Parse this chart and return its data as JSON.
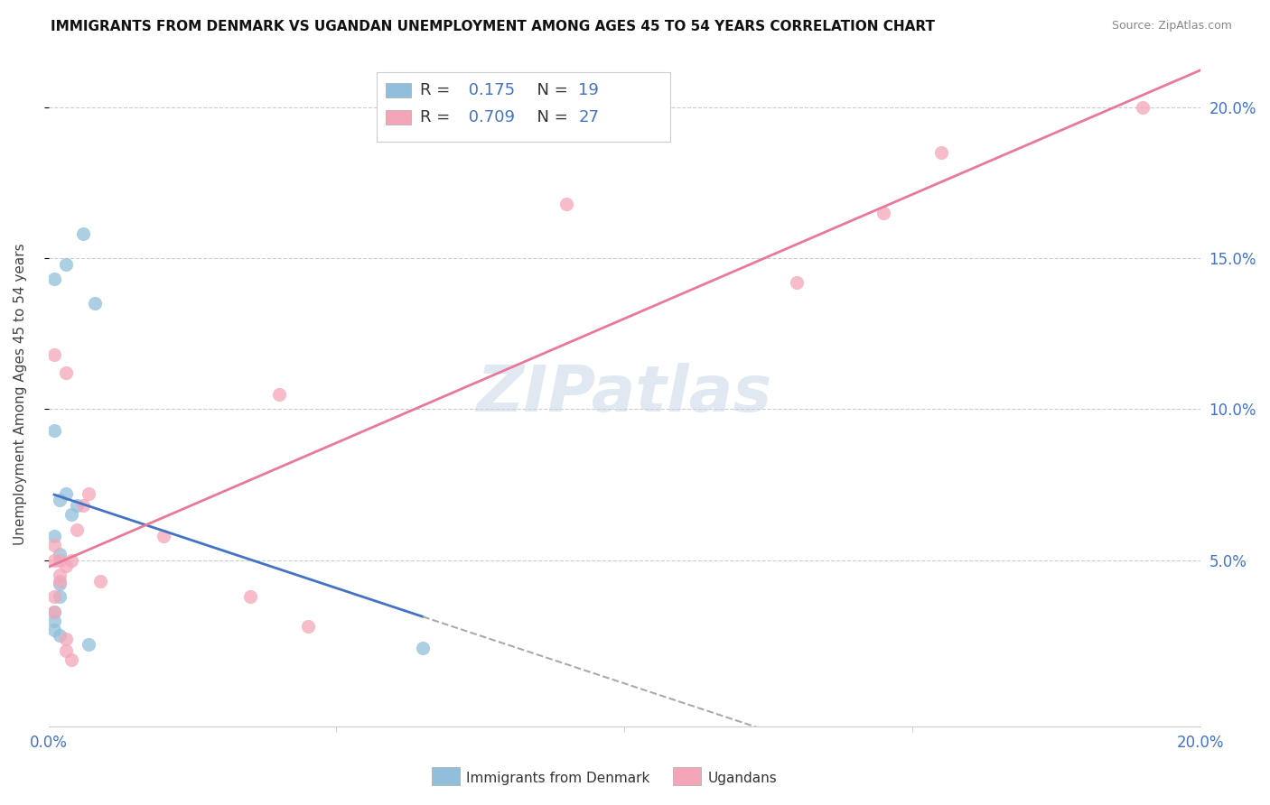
{
  "title": "IMMIGRANTS FROM DENMARK VS UGANDAN UNEMPLOYMENT AMONG AGES 45 TO 54 YEARS CORRELATION CHART",
  "source": "Source: ZipAtlas.com",
  "ylabel": "Unemployment Among Ages 45 to 54 years",
  "xlim": [
    0,
    0.2
  ],
  "ylim": [
    -0.005,
    0.215
  ],
  "yticks": [
    0.05,
    0.1,
    0.15,
    0.2
  ],
  "ytick_labels": [
    "5.0%",
    "10.0%",
    "15.0%",
    "20.0%"
  ],
  "denmark_color": "#91bfdb",
  "ugandan_color": "#f4a6b8",
  "denmark_line_color": "#4472c4",
  "ugandan_line_color": "#e8799a",
  "dashed_line_color": "#aaaaaa",
  "denmark_label": "Immigrants from Denmark",
  "ugandan_label": "Ugandans",
  "denmark_R": 0.175,
  "denmark_N": 19,
  "ugandan_R": 0.709,
  "ugandan_N": 27,
  "watermark": "ZIPatlas",
  "denmark_scatter_x": [
    0.001,
    0.003,
    0.006,
    0.008,
    0.001,
    0.001,
    0.002,
    0.003,
    0.004,
    0.005,
    0.002,
    0.002,
    0.001,
    0.001,
    0.001,
    0.002,
    0.002,
    0.007,
    0.065
  ],
  "denmark_scatter_y": [
    0.143,
    0.148,
    0.158,
    0.135,
    0.093,
    0.058,
    0.07,
    0.072,
    0.065,
    0.068,
    0.052,
    0.038,
    0.033,
    0.03,
    0.027,
    0.025,
    0.042,
    0.022,
    0.021
  ],
  "ugandan_scatter_x": [
    0.001,
    0.003,
    0.001,
    0.001,
    0.001,
    0.001,
    0.002,
    0.002,
    0.002,
    0.003,
    0.004,
    0.005,
    0.006,
    0.007,
    0.009,
    0.02,
    0.035,
    0.045,
    0.003,
    0.003,
    0.004,
    0.04,
    0.09,
    0.13,
    0.145,
    0.155,
    0.19
  ],
  "ugandan_scatter_y": [
    0.118,
    0.112,
    0.055,
    0.05,
    0.038,
    0.033,
    0.05,
    0.043,
    0.045,
    0.048,
    0.05,
    0.06,
    0.068,
    0.072,
    0.043,
    0.058,
    0.038,
    0.028,
    0.024,
    0.02,
    0.017,
    0.105,
    0.168,
    0.142,
    0.165,
    0.185,
    0.2
  ]
}
